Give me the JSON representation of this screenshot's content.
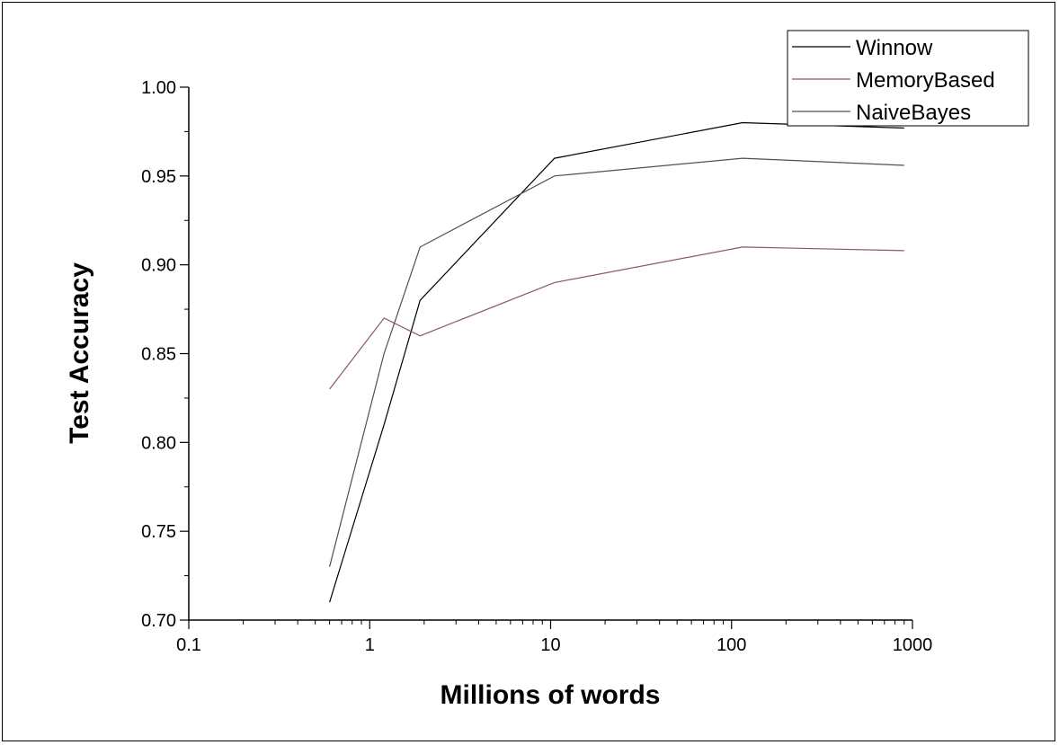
{
  "chart_data": {
    "type": "line",
    "title": "",
    "xlabel": "Millions of words",
    "ylabel": "Test Accuracy",
    "xscale": "log",
    "xlim": [
      0.1,
      1000
    ],
    "ylim": [
      0.7,
      1.0
    ],
    "x_ticks": [
      "0.1",
      "1",
      "10",
      "100",
      "1000"
    ],
    "y_ticks": [
      "0.70",
      "0.75",
      "0.80",
      "0.85",
      "0.90",
      "0.95",
      "1.00"
    ],
    "legend_position": "top-right",
    "grid": false,
    "series": [
      {
        "name": "Winnow",
        "color": "#000000",
        "x": [
          0.6,
          1.2,
          1.9,
          10.5,
          115,
          900
        ],
        "y": [
          0.71,
          0.81,
          0.88,
          0.96,
          0.98,
          0.977
        ]
      },
      {
        "name": "MemoryBased",
        "color": "#8a5a5a",
        "x": [
          0.6,
          1.2,
          1.9,
          10.5,
          115,
          900
        ],
        "y": [
          0.83,
          0.87,
          0.86,
          0.89,
          0.91,
          0.908
        ]
      },
      {
        "name": "NaiveBayes",
        "color": "#5a4a5a",
        "x": [
          0.6,
          1.2,
          1.9,
          10.5,
          115,
          900
        ],
        "y": [
          0.73,
          0.85,
          0.91,
          0.95,
          0.96,
          0.956
        ]
      }
    ]
  }
}
